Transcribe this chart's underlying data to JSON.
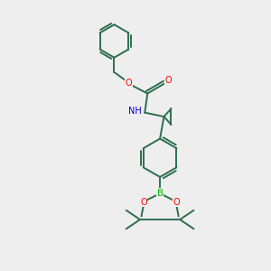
{
  "background_color": "#eeeeee",
  "bond_color": "#2d6e4e",
  "atom_colors": {
    "O": "#ff0000",
    "N": "#0000cc",
    "B": "#00bb00",
    "C": "#2d6e4e"
  },
  "line_width": 1.4,
  "figsize": [
    3.0,
    3.0
  ],
  "dpi": 100
}
